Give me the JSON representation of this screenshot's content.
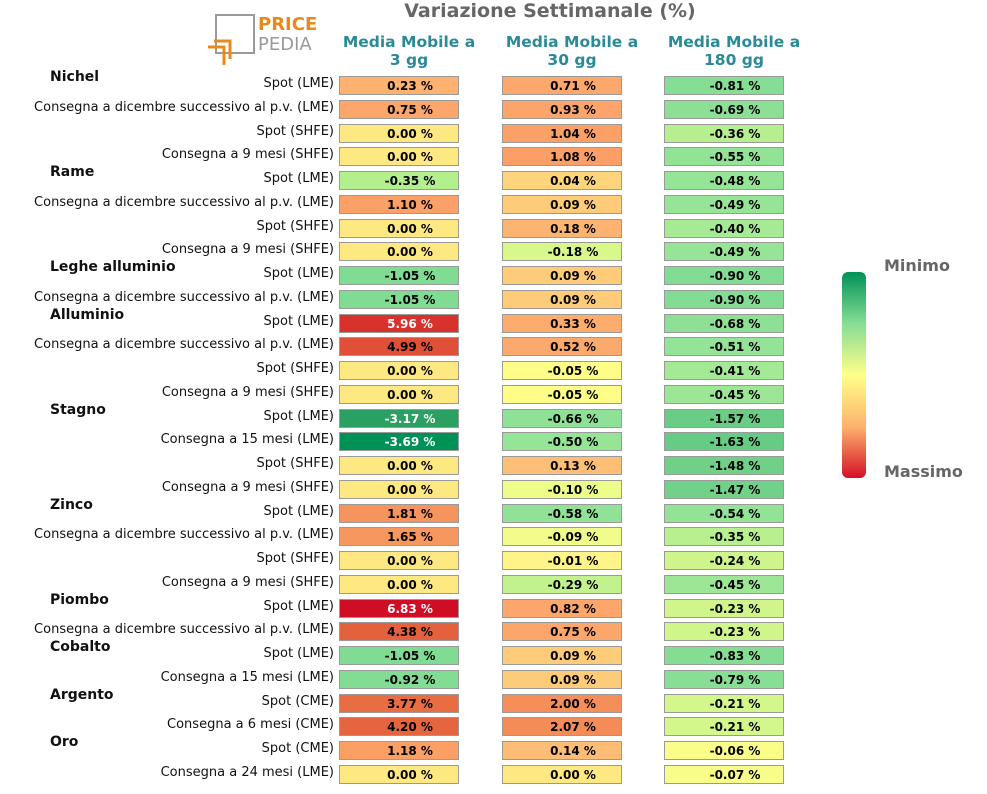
{
  "title": "Variazione Settimanale (%)",
  "logo": {
    "word1": "PRICE",
    "word2": "PEDIA",
    "accent_color": "#e8891c",
    "gray_color": "#9a9a9a"
  },
  "columns": [
    "Media Mobile a\n3 gg",
    "Media Mobile a\n30 gg",
    "Media Mobile a\n180 gg"
  ],
  "legend": {
    "min_label": "Minimo",
    "max_label": "Massimo"
  },
  "colors": {
    "header": "#2a8a98",
    "scale": [
      "#009157",
      "#86dd94",
      "#ffff8a",
      "#fdb36e",
      "#d51025"
    ]
  },
  "chart_data": {
    "type": "table",
    "title": "Variazione Settimanale (%)",
    "unit": "%",
    "series_names": [
      "Media Mobile a 3 gg",
      "Media Mobile a 30 gg",
      "Media Mobile a 180 gg"
    ],
    "groups": [
      {
        "name": "Nichel",
        "rows": [
          {
            "label": "Spot (LME)",
            "values": [
              "0.23 %",
              "0.71 %",
              "-0.81 %"
            ],
            "colors": [
              "#fdb26f",
              "#fca76c",
              "#86dd94"
            ],
            "text_colors": [
              "#000",
              "#000",
              "#000"
            ]
          },
          {
            "label": "Consegna a dicembre successivo al p.v. (LME)",
            "values": [
              "0.75 %",
              "0.93 %",
              "-0.69 %"
            ],
            "colors": [
              "#fca66b",
              "#fca469",
              "#8ce096"
            ],
            "text_colors": [
              "#000",
              "#000",
              "#000"
            ]
          },
          {
            "label": "Spot (SHFE)",
            "values": [
              "0.00 %",
              "1.04 %",
              "-0.36 %"
            ],
            "colors": [
              "#fee882",
              "#fba066",
              "#b5ef90"
            ],
            "text_colors": [
              "#000",
              "#000",
              "#000"
            ]
          },
          {
            "label": "Consegna a 9 mesi (SHFE)",
            "values": [
              "0.00 %",
              "1.08 %",
              "-0.55 %"
            ],
            "colors": [
              "#fee882",
              "#fb9f66",
              "#93e396"
            ],
            "text_colors": [
              "#000",
              "#000",
              "#000"
            ]
          }
        ]
      },
      {
        "name": "Rame",
        "rows": [
          {
            "label": "Spot (LME)",
            "values": [
              "-0.35 %",
              "0.04 %",
              "-0.48 %"
            ],
            "colors": [
              "#b4ef8e",
              "#fed57a",
              "#96e496"
            ],
            "text_colors": [
              "#000",
              "#000",
              "#000"
            ]
          },
          {
            "label": "Consegna a dicembre successivo al p.v. (LME)",
            "values": [
              "1.10 %",
              "0.09 %",
              "-0.49 %"
            ],
            "colors": [
              "#fba066",
              "#fecc78",
              "#96e496"
            ],
            "text_colors": [
              "#000",
              "#000",
              "#000"
            ]
          },
          {
            "label": "Spot (SHFE)",
            "values": [
              "0.00 %",
              "0.18 %",
              "-0.40 %"
            ],
            "colors": [
              "#fee882",
              "#fdb471",
              "#a6ea95"
            ],
            "text_colors": [
              "#000",
              "#000",
              "#000"
            ]
          },
          {
            "label": "Consegna a 9 mesi (SHFE)",
            "values": [
              "0.00 %",
              "-0.18 %",
              "-0.49 %"
            ],
            "colors": [
              "#fee882",
              "#d8f88a",
              "#96e496"
            ],
            "text_colors": [
              "#000",
              "#000",
              "#000"
            ]
          }
        ]
      },
      {
        "name": "Leghe alluminio",
        "rows": [
          {
            "label": "Spot (LME)",
            "values": [
              "-1.05 %",
              "0.09 %",
              "-0.90 %"
            ],
            "colors": [
              "#80db93",
              "#fecc78",
              "#83dc94"
            ],
            "text_colors": [
              "#000",
              "#000",
              "#000"
            ]
          },
          {
            "label": "Consegna a dicembre successivo al p.v. (LME)",
            "values": [
              "-1.05 %",
              "0.09 %",
              "-0.90 %"
            ],
            "colors": [
              "#80db93",
              "#fecc78",
              "#83dc94"
            ],
            "text_colors": [
              "#000",
              "#000",
              "#000"
            ]
          }
        ]
      },
      {
        "name": "Alluminio",
        "rows": [
          {
            "label": "Spot (LME)",
            "values": [
              "5.96 %",
              "0.33 %",
              "-0.68 %"
            ],
            "colors": [
              "#d7322c",
              "#fdac6e",
              "#8de096"
            ],
            "text_colors": [
              "#fff",
              "#000",
              "#000"
            ]
          },
          {
            "label": "Consegna a dicembre successivo al p.v. (LME)",
            "values": [
              "4.99 %",
              "0.52 %",
              "-0.51 %"
            ],
            "colors": [
              "#e04f37",
              "#fca96d",
              "#95e396"
            ],
            "text_colors": [
              "#000",
              "#000",
              "#000"
            ]
          },
          {
            "label": "Spot (SHFE)",
            "values": [
              "0.00 %",
              "-0.05 %",
              "-0.41 %"
            ],
            "colors": [
              "#fee882",
              "#fdfd88",
              "#a4e995"
            ],
            "text_colors": [
              "#000",
              "#000",
              "#000"
            ]
          },
          {
            "label": "Consegna a 9 mesi (SHFE)",
            "values": [
              "0.00 %",
              "-0.05 %",
              "-0.45 %"
            ],
            "colors": [
              "#fee882",
              "#fdfd88",
              "#9ce696"
            ],
            "text_colors": [
              "#000",
              "#000",
              "#000"
            ]
          }
        ]
      },
      {
        "name": "Stagno",
        "rows": [
          {
            "label": "Spot (LME)",
            "values": [
              "-3.17 %",
              "-0.66 %",
              "-1.57 %"
            ],
            "colors": [
              "#2aa062",
              "#8ee196",
              "#6acd85"
            ],
            "text_colors": [
              "#fff",
              "#000",
              "#000"
            ]
          },
          {
            "label": "Consegna a 15 mesi (LME)",
            "values": [
              "-3.69 %",
              "-0.50 %",
              "-1.63 %"
            ],
            "colors": [
              "#009157",
              "#96e496",
              "#66cb84"
            ],
            "text_colors": [
              "#fff",
              "#000",
              "#000"
            ]
          },
          {
            "label": "Spot (SHFE)",
            "values": [
              "0.00 %",
              "0.13 %",
              "-1.48 %"
            ],
            "colors": [
              "#fee882",
              "#fdbf75",
              "#70d088"
            ],
            "text_colors": [
              "#000",
              "#000",
              "#000"
            ]
          },
          {
            "label": "Consegna a 9 mesi (SHFE)",
            "values": [
              "0.00 %",
              "-0.10 %",
              "-1.47 %"
            ],
            "colors": [
              "#fee882",
              "#eefc8a",
              "#71d188"
            ],
            "text_colors": [
              "#000",
              "#000",
              "#000"
            ]
          }
        ]
      },
      {
        "name": "Zinco",
        "rows": [
          {
            "label": "Spot (LME)",
            "values": [
              "1.81 %",
              "-0.58 %",
              "-0.54 %"
            ],
            "colors": [
              "#f5945d",
              "#91e296",
              "#93e396"
            ],
            "text_colors": [
              "#000",
              "#000",
              "#000"
            ]
          },
          {
            "label": "Consegna a dicembre successivo al p.v. (LME)",
            "values": [
              "1.65 %",
              "-0.09 %",
              "-0.35 %"
            ],
            "colors": [
              "#f6975f",
              "#f1fc8a",
              "#b8f08f"
            ],
            "text_colors": [
              "#000",
              "#000",
              "#000"
            ]
          },
          {
            "label": "Spot (SHFE)",
            "values": [
              "0.00 %",
              "-0.01 %",
              "-0.24 %"
            ],
            "colors": [
              "#fee882",
              "#fff487",
              "#cdf58c"
            ],
            "text_colors": [
              "#000",
              "#000",
              "#000"
            ]
          },
          {
            "label": "Consegna a 9 mesi (SHFE)",
            "values": [
              "0.00 %",
              "-0.29 %",
              "-0.45 %"
            ],
            "colors": [
              "#fee882",
              "#c2f28e",
              "#9ce696"
            ],
            "text_colors": [
              "#000",
              "#000",
              "#000"
            ]
          }
        ]
      },
      {
        "name": "Piombo",
        "rows": [
          {
            "label": "Spot (LME)",
            "values": [
              "6.83 %",
              "0.82 %",
              "-0.23 %"
            ],
            "colors": [
              "#cf0e26",
              "#fca66b",
              "#d0f68b"
            ],
            "text_colors": [
              "#fff",
              "#000",
              "#000"
            ]
          },
          {
            "label": "Consegna a dicembre successivo al p.v. (LME)",
            "values": [
              "4.38 %",
              "0.75 %",
              "-0.23 %"
            ],
            "colors": [
              "#e4613d",
              "#fca66b",
              "#d0f68b"
            ],
            "text_colors": [
              "#000",
              "#000",
              "#000"
            ]
          }
        ]
      },
      {
        "name": "Cobalto",
        "rows": [
          {
            "label": "Spot (LME)",
            "values": [
              "-1.05 %",
              "0.09 %",
              "-0.83 %"
            ],
            "colors": [
              "#80db93",
              "#fecc78",
              "#85dd94"
            ],
            "text_colors": [
              "#000",
              "#000",
              "#000"
            ]
          },
          {
            "label": "Consegna a 15 mesi (LME)",
            "values": [
              "-0.92 %",
              "0.09 %",
              "-0.79 %"
            ],
            "colors": [
              "#83dc93",
              "#fecc78",
              "#87de94"
            ],
            "text_colors": [
              "#000",
              "#000",
              "#000"
            ]
          }
        ]
      },
      {
        "name": "Argento",
        "rows": [
          {
            "label": "Spot (CME)",
            "values": [
              "3.77 %",
              "2.00 %",
              "-0.21 %"
            ],
            "colors": [
              "#e86d42",
              "#f58e59",
              "#d4f78b"
            ],
            "text_colors": [
              "#000",
              "#000",
              "#000"
            ]
          },
          {
            "label": "Consegna a 6 mesi (CME)",
            "values": [
              "4.20 %",
              "2.07 %",
              "-0.21 %"
            ],
            "colors": [
              "#e5653f",
              "#f48c58",
              "#d4f78b"
            ],
            "text_colors": [
              "#000",
              "#000",
              "#000"
            ]
          }
        ]
      },
      {
        "name": "Oro",
        "rows": [
          {
            "label": "Spot (CME)",
            "values": [
              "1.18 %",
              "0.14 %",
              "-0.06 %"
            ],
            "colors": [
              "#fb9f65",
              "#fdbd75",
              "#fafd88"
            ],
            "text_colors": [
              "#000",
              "#000",
              "#000"
            ]
          },
          {
            "label": "Consegna a 24 mesi (LME)",
            "values": [
              "0.00 %",
              "0.00 %",
              "-0.07 %"
            ],
            "colors": [
              "#fee882",
              "#fee882",
              "#f7fd88"
            ],
            "text_colors": [
              "#000",
              "#000",
              "#000"
            ]
          }
        ]
      }
    ]
  }
}
